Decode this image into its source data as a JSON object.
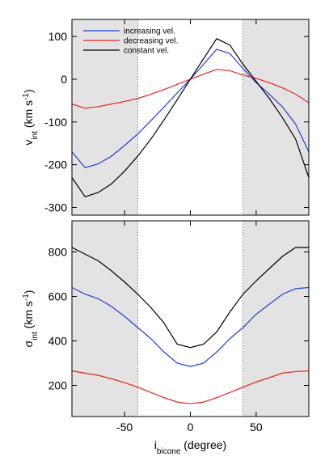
{
  "chart_data": [
    {
      "type": "line",
      "ylabel": [
        "v",
        "int",
        " (km s",
        "-1",
        ")"
      ],
      "x": [
        -90,
        -80,
        -70,
        -60,
        -50,
        -40,
        -30,
        -20,
        -10,
        0,
        10,
        20,
        30,
        40,
        50,
        60,
        70,
        80,
        90
      ],
      "xlim": [
        -90,
        90
      ],
      "xticks": [
        -50,
        0,
        50
      ],
      "show_xtick_labels": false,
      "ylim": [
        -318,
        140
      ],
      "yticks": [
        -300,
        -200,
        -100,
        0,
        100
      ],
      "shaded_x": [
        [
          -90,
          -40
        ],
        [
          40,
          90
        ]
      ],
      "legend": "upper left",
      "series": [
        {
          "name": "increasing vel.",
          "color": "#1f3fe0",
          "values": [
            -170,
            -207,
            -198,
            -180,
            -155,
            -128,
            -97,
            -65,
            -32,
            0,
            35,
            70,
            60,
            25,
            -8,
            -35,
            -65,
            -105,
            -170
          ]
        },
        {
          "name": "decreasing vel.",
          "color": "#e8261a",
          "values": [
            -58,
            -68,
            -64,
            -58,
            -52,
            -45,
            -35,
            -24,
            -12,
            0,
            12,
            23,
            20,
            10,
            2,
            -8,
            -20,
            -35,
            -55
          ]
        },
        {
          "name": "constant vel.",
          "color": "#000000",
          "values": [
            -230,
            -275,
            -265,
            -245,
            -215,
            -180,
            -140,
            -95,
            -48,
            0,
            48,
            95,
            80,
            35,
            -5,
            -45,
            -90,
            -140,
            -230
          ]
        }
      ]
    },
    {
      "type": "line",
      "ylabel": [
        "σ",
        "int",
        " (km s",
        "-1",
        ")"
      ],
      "xlabel": [
        "i",
        "bicone",
        " (degree)"
      ],
      "x": [
        -90,
        -80,
        -70,
        -60,
        -50,
        -40,
        -30,
        -20,
        -10,
        0,
        10,
        20,
        30,
        40,
        50,
        60,
        70,
        80,
        90
      ],
      "xlim": [
        -90,
        90
      ],
      "xticks": [
        -50,
        0,
        50
      ],
      "show_xtick_labels": true,
      "ylim": [
        60,
        940
      ],
      "yticks": [
        200,
        400,
        600,
        800
      ],
      "shaded_x": [
        [
          -90,
          -40
        ],
        [
          40,
          90
        ]
      ],
      "series": [
        {
          "name": "increasing vel.",
          "color": "#1f3fe0",
          "values": [
            640,
            610,
            590,
            555,
            510,
            460,
            410,
            350,
            300,
            285,
            300,
            350,
            410,
            460,
            520,
            565,
            610,
            635,
            640
          ]
        },
        {
          "name": "decreasing vel.",
          "color": "#e8261a",
          "values": [
            265,
            255,
            245,
            230,
            212,
            192,
            168,
            145,
            125,
            118,
            125,
            145,
            168,
            192,
            215,
            235,
            255,
            262,
            265
          ]
        },
        {
          "name": "constant vel.",
          "color": "#000000",
          "values": [
            820,
            790,
            760,
            715,
            665,
            610,
            550,
            480,
            385,
            370,
            385,
            440,
            530,
            610,
            670,
            725,
            780,
            820,
            820
          ]
        }
      ]
    }
  ]
}
